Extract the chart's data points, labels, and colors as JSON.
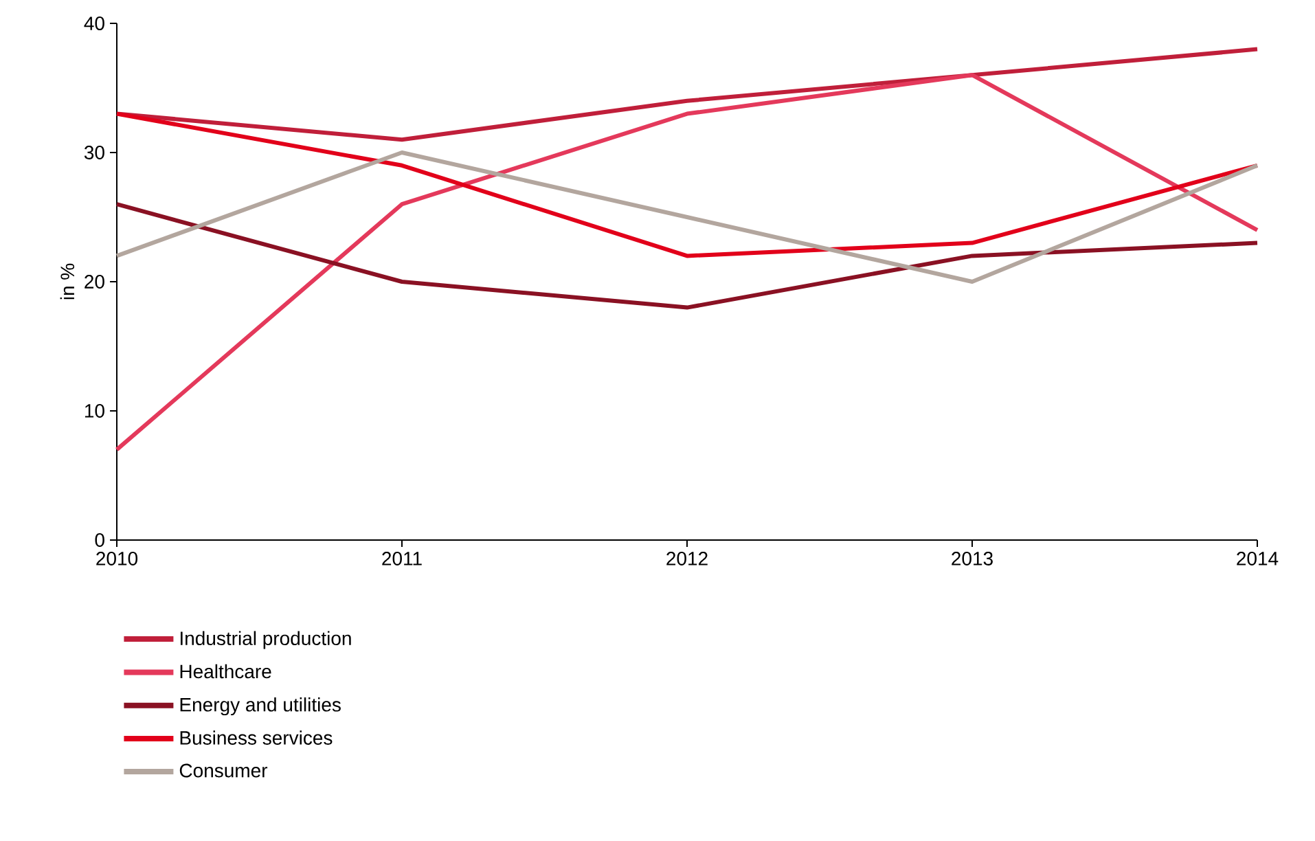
{
  "chart_data": {
    "type": "line",
    "ylabel": "in %",
    "x": [
      2010,
      2011,
      2012,
      2013,
      2014
    ],
    "xlim": [
      2010,
      2014
    ],
    "xticks": [
      2010,
      2011,
      2012,
      2013,
      2014
    ],
    "ylim": [
      0,
      40
    ],
    "yticks": [
      0,
      10,
      20,
      30,
      40
    ],
    "legend": "bottom",
    "line_style": "solid",
    "series": [
      {
        "name": "Industrial production",
        "color": "#c01f3a",
        "values": [
          33,
          31,
          34,
          36,
          38
        ]
      },
      {
        "name": "Healthcare",
        "color": "#e4395b",
        "values": [
          7,
          26,
          33,
          36,
          24
        ]
      },
      {
        "name": "Energy and utilities",
        "color": "#8a1123",
        "values": [
          26,
          20,
          18,
          22,
          23
        ]
      },
      {
        "name": "Business services",
        "color": "#e2001a",
        "values": [
          33,
          29,
          22,
          23,
          29
        ]
      },
      {
        "name": "Consumer",
        "color": "#b3a69e",
        "values": [
          22,
          30,
          25,
          20,
          29
        ]
      }
    ]
  }
}
